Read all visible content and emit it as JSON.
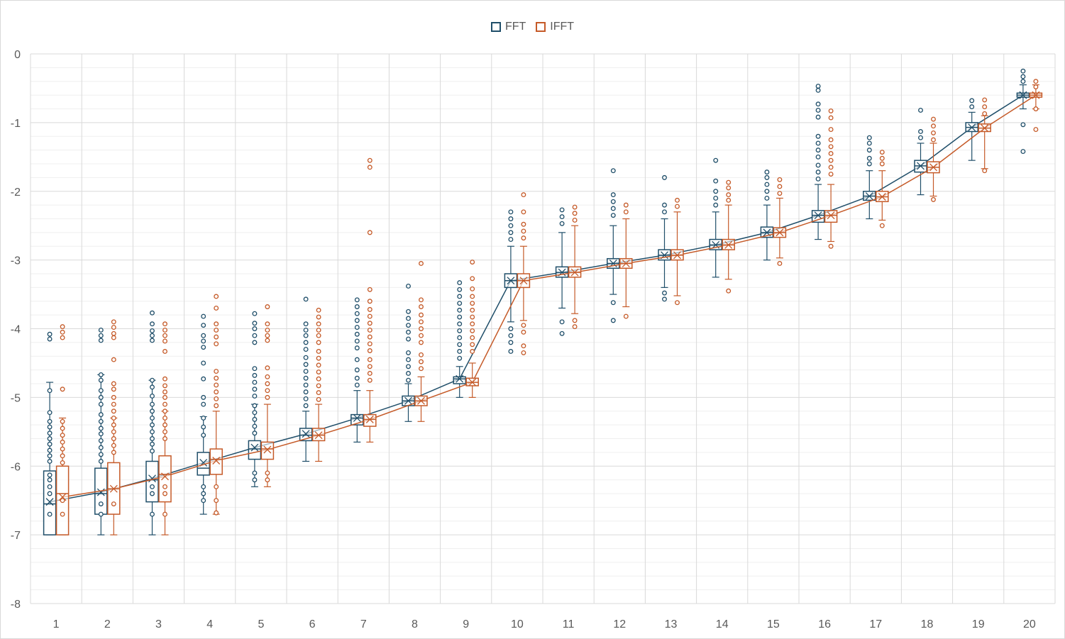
{
  "chart_data": {
    "type": "box",
    "title": "",
    "xlabel": "",
    "ylabel": "",
    "ylim": [
      -8,
      0
    ],
    "y_major_step": 1,
    "y_minor_step": 0.2,
    "grid": true,
    "legend_position": "top-center",
    "categories": [
      "1",
      "2",
      "3",
      "4",
      "5",
      "6",
      "7",
      "8",
      "9",
      "10",
      "11",
      "12",
      "13",
      "14",
      "15",
      "16",
      "17",
      "18",
      "19",
      "20"
    ],
    "series": [
      {
        "name": "FFT",
        "color": "#1f4e69",
        "boxes": [
          {
            "min": -7.0,
            "q1": -7.0,
            "median": -6.55,
            "q3": -6.07,
            "max": -4.78,
            "mean": -6.52
          },
          {
            "min": -7.0,
            "q1": -6.7,
            "median": -6.4,
            "q3": -6.03,
            "max": -4.67,
            "mean": -6.38
          },
          {
            "min": -7.0,
            "q1": -6.52,
            "median": -6.2,
            "q3": -5.93,
            "max": -4.75,
            "mean": -6.18
          },
          {
            "min": -6.7,
            "q1": -6.13,
            "median": -6.03,
            "q3": -5.8,
            "max": -5.28,
            "mean": -5.95
          },
          {
            "min": -6.3,
            "q1": -5.9,
            "median": -5.75,
            "q3": -5.63,
            "max": -5.1,
            "mean": -5.73
          },
          {
            "min": -5.93,
            "q1": -5.63,
            "median": -5.55,
            "q3": -5.45,
            "max": -5.2,
            "mean": -5.53
          },
          {
            "min": -5.65,
            "q1": -5.4,
            "median": -5.3,
            "q3": -5.25,
            "max": -4.9,
            "mean": -5.3
          },
          {
            "min": -5.35,
            "q1": -5.12,
            "median": -5.05,
            "q3": -4.98,
            "max": -4.8,
            "mean": -5.05
          },
          {
            "min": -5.0,
            "q1": -4.8,
            "median": -4.73,
            "q3": -4.7,
            "max": -4.55,
            "mean": -4.73
          },
          {
            "min": -3.9,
            "q1": -3.4,
            "median": -3.3,
            "q3": -3.2,
            "max": -2.8,
            "mean": -3.3
          },
          {
            "min": -3.7,
            "q1": -3.25,
            "median": -3.18,
            "q3": -3.1,
            "max": -2.6,
            "mean": -3.18
          },
          {
            "min": -3.5,
            "q1": -3.12,
            "median": -3.05,
            "q3": -2.98,
            "max": -2.5,
            "mean": -3.05
          },
          {
            "min": -3.4,
            "q1": -3.0,
            "median": -2.93,
            "q3": -2.85,
            "max": -2.4,
            "mean": -2.93
          },
          {
            "min": -3.25,
            "q1": -2.85,
            "median": -2.78,
            "q3": -2.7,
            "max": -2.3,
            "mean": -2.78
          },
          {
            "min": -3.0,
            "q1": -2.67,
            "median": -2.6,
            "q3": -2.52,
            "max": -2.2,
            "mean": -2.6
          },
          {
            "min": -2.7,
            "q1": -2.45,
            "median": -2.35,
            "q3": -2.28,
            "max": -1.9,
            "mean": -2.35
          },
          {
            "min": -2.4,
            "q1": -2.13,
            "median": -2.07,
            "q3": -2.0,
            "max": -1.7,
            "mean": -2.07
          },
          {
            "min": -2.05,
            "q1": -1.72,
            "median": -1.63,
            "q3": -1.55,
            "max": -1.3,
            "mean": -1.63
          },
          {
            "min": -1.55,
            "q1": -1.13,
            "median": -1.07,
            "q3": -1.0,
            "max": -0.85,
            "mean": -1.07
          },
          {
            "min": -0.8,
            "q1": -0.63,
            "median": -0.6,
            "q3": -0.57,
            "max": -0.45,
            "mean": -0.6
          }
        ],
        "outliers": [
          [
            -4.08,
            -4.15,
            -4.9,
            -5.22,
            -5.35,
            -5.43,
            -5.52,
            -5.6,
            -5.68,
            -5.77,
            -5.85,
            -5.93,
            -6.13,
            -6.2,
            -6.3,
            -6.4,
            -6.7
          ],
          [
            -4.02,
            -4.1,
            -4.17,
            -4.67,
            -4.75,
            -4.9,
            -5.0,
            -5.1,
            -5.25,
            -5.35,
            -5.45,
            -5.53,
            -5.63,
            -5.73,
            -5.83,
            -5.93,
            -6.55,
            -6.7
          ],
          [
            -3.77,
            -3.93,
            -4.03,
            -4.1,
            -4.17,
            -4.75,
            -4.85,
            -4.98,
            -5.1,
            -5.2,
            -5.3,
            -5.4,
            -5.5,
            -5.6,
            -5.68,
            -5.78,
            -6.3,
            -6.4,
            -6.7
          ],
          [
            -3.82,
            -3.95,
            -4.1,
            -4.18,
            -4.27,
            -4.5,
            -4.73,
            -5.0,
            -5.1,
            -5.3,
            -5.43,
            -5.55,
            -6.3,
            -6.4,
            -6.5
          ],
          [
            -3.78,
            -3.92,
            -4.0,
            -4.1,
            -4.2,
            -4.58,
            -4.68,
            -4.78,
            -4.88,
            -4.98,
            -5.12,
            -5.22,
            -5.32,
            -5.42,
            -5.52,
            -6.1,
            -6.2
          ],
          [
            -3.57,
            -3.93,
            -4.02,
            -4.1,
            -4.2,
            -4.3,
            -4.42,
            -4.52,
            -4.62,
            -4.72,
            -4.82,
            -4.92,
            -5.02,
            -5.12
          ],
          [
            -3.58,
            -3.68,
            -3.78,
            -3.88,
            -3.98,
            -4.08,
            -4.18,
            -4.28,
            -4.45,
            -4.6,
            -4.72,
            -4.82
          ],
          [
            -3.38,
            -3.75,
            -3.85,
            -3.95,
            -4.05,
            -4.15,
            -4.35,
            -4.45,
            -4.55,
            -4.65,
            -4.75
          ],
          [
            -3.33,
            -3.43,
            -3.53,
            -3.63,
            -3.73,
            -3.83,
            -3.93,
            -4.03,
            -4.13,
            -4.23,
            -4.33,
            -4.43
          ],
          [
            -2.3,
            -2.4,
            -2.5,
            -2.6,
            -2.7,
            -4.0,
            -4.1,
            -4.2,
            -4.33
          ],
          [
            -2.27,
            -2.37,
            -2.47,
            -3.9,
            -4.07
          ],
          [
            -1.7,
            -2.05,
            -2.15,
            -2.25,
            -2.35,
            -3.62,
            -3.88
          ],
          [
            -1.8,
            -2.2,
            -2.3,
            -3.48,
            -3.57
          ],
          [
            -1.55,
            -1.85,
            -2.0,
            -2.1,
            -2.2
          ],
          [
            -1.72,
            -1.8,
            -1.9,
            -2.0,
            -2.1
          ],
          [
            -0.47,
            -0.53,
            -0.73,
            -0.82,
            -0.92,
            -1.2,
            -1.3,
            -1.4,
            -1.5,
            -1.62,
            -1.72,
            -1.82
          ],
          [
            -1.22,
            -1.3,
            -1.4,
            -1.52,
            -1.6
          ],
          [
            -0.82,
            -1.13,
            -1.22
          ],
          [
            -0.68,
            -0.77
          ],
          [
            -0.25,
            -0.33,
            -0.4,
            -1.03,
            -1.42
          ]
        ]
      },
      {
        "name": "IFFT",
        "color": "#c55a28",
        "boxes": [
          {
            "min": -7.0,
            "q1": -7.0,
            "median": -6.4,
            "q3": -6.0,
            "max": -5.3,
            "mean": -6.45
          },
          {
            "min": -7.0,
            "q1": -6.7,
            "median": -6.33,
            "q3": -5.95,
            "max": -5.3,
            "mean": -6.33
          },
          {
            "min": -7.0,
            "q1": -6.52,
            "median": -6.12,
            "q3": -5.85,
            "max": -5.2,
            "mean": -6.15
          },
          {
            "min": -6.7,
            "q1": -6.12,
            "median": -5.9,
            "q3": -5.75,
            "max": -5.2,
            "mean": -5.92
          },
          {
            "min": -6.3,
            "q1": -5.9,
            "median": -5.75,
            "q3": -5.65,
            "max": -5.1,
            "mean": -5.76
          },
          {
            "min": -5.93,
            "q1": -5.63,
            "median": -5.55,
            "q3": -5.45,
            "max": -5.1,
            "mean": -5.55
          },
          {
            "min": -5.65,
            "q1": -5.42,
            "median": -5.32,
            "q3": -5.25,
            "max": -4.9,
            "mean": -5.32
          },
          {
            "min": -5.35,
            "q1": -5.12,
            "median": -5.05,
            "q3": -4.98,
            "max": -4.7,
            "mean": -5.05
          },
          {
            "min": -5.0,
            "q1": -4.83,
            "median": -4.78,
            "q3": -4.72,
            "max": -4.5,
            "mean": -4.78
          },
          {
            "min": -3.88,
            "q1": -3.4,
            "median": -3.3,
            "q3": -3.2,
            "max": -2.8,
            "mean": -3.3
          },
          {
            "min": -3.78,
            "q1": -3.25,
            "median": -3.18,
            "q3": -3.1,
            "max": -2.5,
            "mean": -3.18
          },
          {
            "min": -3.68,
            "q1": -3.12,
            "median": -3.05,
            "q3": -2.98,
            "max": -2.4,
            "mean": -3.05
          },
          {
            "min": -3.52,
            "q1": -3.0,
            "median": -2.93,
            "q3": -2.85,
            "max": -2.3,
            "mean": -2.93
          },
          {
            "min": -3.28,
            "q1": -2.85,
            "median": -2.78,
            "q3": -2.7,
            "max": -2.2,
            "mean": -2.78
          },
          {
            "min": -2.97,
            "q1": -2.67,
            "median": -2.6,
            "q3": -2.53,
            "max": -2.1,
            "mean": -2.6
          },
          {
            "min": -2.73,
            "q1": -2.45,
            "median": -2.35,
            "q3": -2.28,
            "max": -1.9,
            "mean": -2.35
          },
          {
            "min": -2.42,
            "q1": -2.15,
            "median": -2.08,
            "q3": -2.0,
            "max": -1.7,
            "mean": -2.08
          },
          {
            "min": -2.07,
            "q1": -1.73,
            "median": -1.65,
            "q3": -1.57,
            "max": -1.3,
            "mean": -1.65
          },
          {
            "min": -1.67,
            "q1": -1.13,
            "median": -1.08,
            "q3": -1.02,
            "max": -0.9,
            "mean": -1.08
          },
          {
            "min": -0.8,
            "q1": -0.63,
            "median": -0.6,
            "q3": -0.57,
            "max": -0.45,
            "mean": -0.6
          }
        ],
        "outliers": [
          [
            -3.97,
            -4.05,
            -4.13,
            -4.88,
            -5.35,
            -5.45,
            -5.55,
            -5.65,
            -5.75,
            -5.85,
            -5.95,
            -6.5,
            -6.7
          ],
          [
            -3.9,
            -3.98,
            -4.07,
            -4.13,
            -4.45,
            -4.8,
            -4.88,
            -5.0,
            -5.1,
            -5.2,
            -5.3,
            -5.4,
            -5.5,
            -5.6,
            -5.7,
            -5.8,
            -6.55
          ],
          [
            -3.93,
            -4.02,
            -4.1,
            -4.18,
            -4.33,
            -4.73,
            -4.83,
            -4.92,
            -5.0,
            -5.1,
            -5.2,
            -5.3,
            -5.4,
            -5.5,
            -5.6,
            -6.3,
            -6.4,
            -6.7
          ],
          [
            -3.53,
            -3.7,
            -3.93,
            -4.02,
            -4.12,
            -4.22,
            -4.62,
            -4.72,
            -4.82,
            -4.92,
            -5.02,
            -5.12,
            -6.3,
            -6.5,
            -6.68
          ],
          [
            -3.68,
            -3.93,
            -4.02,
            -4.1,
            -4.17,
            -4.57,
            -4.7,
            -4.8,
            -4.9,
            -5.0,
            -6.1,
            -6.2
          ],
          [
            -3.73,
            -3.83,
            -3.93,
            -4.02,
            -4.1,
            -4.2,
            -4.33,
            -4.43,
            -4.53,
            -4.63,
            -4.73,
            -4.83,
            -4.93,
            -5.03
          ],
          [
            -1.55,
            -1.65,
            -2.6,
            -3.43,
            -3.6,
            -3.72,
            -3.82,
            -3.92,
            -4.02,
            -4.12,
            -4.22,
            -4.32,
            -4.45,
            -4.55,
            -4.65,
            -4.75
          ],
          [
            -3.05,
            -3.58,
            -3.68,
            -3.8,
            -3.9,
            -4.0,
            -4.1,
            -4.2,
            -4.38,
            -4.48,
            -4.58
          ],
          [
            -3.03,
            -3.27,
            -3.42,
            -3.53,
            -3.63,
            -3.73,
            -3.83,
            -3.93,
            -4.03,
            -4.13,
            -4.23,
            -4.33
          ],
          [
            -2.05,
            -2.3,
            -2.48,
            -2.58,
            -2.68,
            -3.95,
            -4.05,
            -4.25,
            -4.35
          ],
          [
            -2.23,
            -2.32,
            -2.42,
            -3.88,
            -3.97
          ],
          [
            -2.2,
            -2.3,
            -3.82
          ],
          [
            -2.13,
            -2.22,
            -3.62
          ],
          [
            -1.87,
            -1.95,
            -2.05,
            -2.13,
            -3.45
          ],
          [
            -1.83,
            -1.93,
            -2.03,
            -3.05
          ],
          [
            -0.83,
            -0.93,
            -1.1,
            -1.25,
            -1.35,
            -1.45,
            -1.55,
            -1.65,
            -1.75,
            -2.8
          ],
          [
            -1.43,
            -1.52,
            -1.6,
            -2.5
          ],
          [
            -0.95,
            -1.05,
            -1.15,
            -1.25,
            -2.12
          ],
          [
            -0.67,
            -0.77,
            -0.87,
            -1.7
          ],
          [
            -0.4,
            -0.48,
            -0.8,
            -1.1
          ]
        ]
      }
    ]
  }
}
